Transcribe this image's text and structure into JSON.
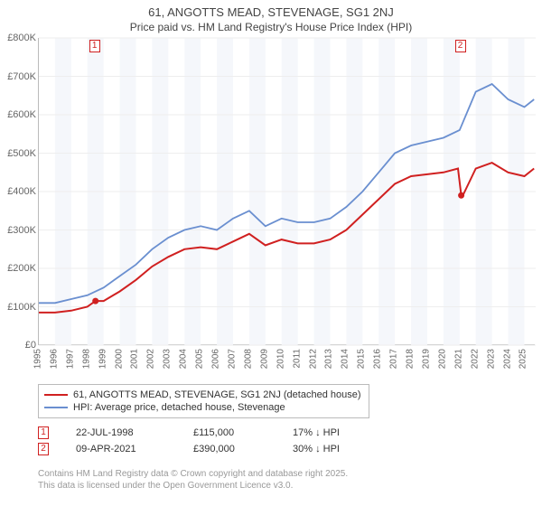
{
  "title_line1": "61, ANGOTTS MEAD, STEVENAGE, SG1 2NJ",
  "title_line2": "Price paid vs. HM Land Registry's House Price Index (HPI)",
  "chart": {
    "type": "line",
    "ylim": [
      0,
      800000
    ],
    "ytick_step": 100000,
    "y_labels": [
      "£0",
      "£100K",
      "£200K",
      "£300K",
      "£400K",
      "£500K",
      "£600K",
      "£700K",
      "£800K"
    ],
    "x_years": [
      1995,
      1996,
      1997,
      1998,
      1999,
      2000,
      2001,
      2002,
      2003,
      2004,
      2005,
      2006,
      2007,
      2008,
      2009,
      2010,
      2011,
      2012,
      2013,
      2014,
      2015,
      2016,
      2017,
      2018,
      2019,
      2020,
      2021,
      2022,
      2023,
      2024,
      2025
    ],
    "background_color": "#ffffff",
    "band_color": "#f5f7fb",
    "grid_color": "#eeeeee",
    "series": [
      {
        "id": "hpi",
        "label": "HPI: Average price, detached house, Stevenage",
        "color": "#6a8fd0",
        "linewidth": 1.8,
        "x": [
          1995,
          1996,
          1997,
          1998,
          1999,
          2000,
          2001,
          2002,
          2003,
          2004,
          2005,
          2006,
          2007,
          2008,
          2009,
          2010,
          2011,
          2012,
          2013,
          2014,
          2015,
          2016,
          2017,
          2018,
          2019,
          2020,
          2021,
          2022,
          2023,
          2024,
          2025,
          2025.6
        ],
        "y": [
          110000,
          110000,
          120000,
          130000,
          150000,
          180000,
          210000,
          250000,
          280000,
          300000,
          310000,
          300000,
          330000,
          350000,
          310000,
          330000,
          320000,
          320000,
          330000,
          360000,
          400000,
          450000,
          500000,
          520000,
          530000,
          540000,
          560000,
          660000,
          680000,
          640000,
          620000,
          640000
        ]
      },
      {
        "id": "price",
        "label": "61, ANGOTTS MEAD, STEVENAGE, SG1 2NJ (detached house)",
        "color": "#d02020",
        "linewidth": 2,
        "x": [
          1995,
          1996,
          1997,
          1998,
          1998.5,
          1999,
          2000,
          2001,
          2002,
          2003,
          2004,
          2005,
          2006,
          2007,
          2008,
          2009,
          2010,
          2011,
          2012,
          2013,
          2014,
          2015,
          2016,
          2017,
          2018,
          2019,
          2020,
          2020.9,
          2021.1,
          2021.2,
          2022,
          2023,
          2024,
          2025,
          2025.6
        ],
        "y": [
          85000,
          85000,
          90000,
          100000,
          115000,
          115000,
          140000,
          170000,
          205000,
          230000,
          250000,
          255000,
          250000,
          270000,
          290000,
          260000,
          275000,
          265000,
          265000,
          275000,
          300000,
          340000,
          380000,
          420000,
          440000,
          445000,
          450000,
          460000,
          390000,
          390000,
          460000,
          475000,
          450000,
          440000,
          460000
        ]
      }
    ],
    "sale_markers": [
      {
        "n": "1",
        "x_year": 1998.5,
        "y_val": 115000,
        "color": "#d02020"
      },
      {
        "n": "2",
        "x_year": 2021.1,
        "y_val": 390000,
        "color": "#d02020"
      }
    ],
    "top_markers": [
      {
        "n": "1",
        "x_year": 1998.5,
        "color": "#d02020"
      },
      {
        "n": "2",
        "x_year": 2021.1,
        "color": "#d02020"
      }
    ]
  },
  "legend": [
    {
      "color": "#d02020",
      "text": "61, ANGOTTS MEAD, STEVENAGE, SG1 2NJ (detached house)"
    },
    {
      "color": "#6a8fd0",
      "text": "HPI: Average price, detached house, Stevenage"
    }
  ],
  "sales_table": [
    {
      "n": "1",
      "color": "#d02020",
      "date": "22-JUL-1998",
      "price": "£115,000",
      "pct": "17% ↓ HPI"
    },
    {
      "n": "2",
      "color": "#d02020",
      "date": "09-APR-2021",
      "price": "£390,000",
      "pct": "30% ↓ HPI"
    }
  ],
  "footer_line1": "Contains HM Land Registry data © Crown copyright and database right 2025.",
  "footer_line2": "This data is licensed under the Open Government Licence v3.0."
}
